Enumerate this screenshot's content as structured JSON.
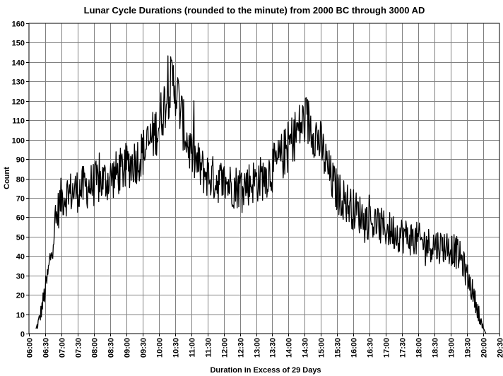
{
  "chart_data": {
    "type": "line",
    "title": "Lunar Cycle Durations (rounded to the minute) from 2000 BC through 3000 AD",
    "xlabel": "Duration in Excess of 29 Days",
    "ylabel": "Count",
    "xlim_minutes": [
      360,
      1230
    ],
    "ylim": [
      0,
      160
    ],
    "grid": true,
    "x_tick_labels": [
      "06:00",
      "06:30",
      "07:00",
      "07:30",
      "08:00",
      "08:30",
      "09:00",
      "09:30",
      "10:00",
      "10:30",
      "11:00",
      "11:30",
      "12:00",
      "12:30",
      "13:00",
      "13:30",
      "14:00",
      "14:30",
      "15:00",
      "15:30",
      "16:00",
      "16:30",
      "17:00",
      "17:30",
      "18:00",
      "18:30",
      "19:00",
      "19:30",
      "20:00",
      "20:30"
    ],
    "y_tick_labels": [
      "0",
      "10",
      "20",
      "30",
      "40",
      "50",
      "60",
      "70",
      "80",
      "90",
      "100",
      "110",
      "120",
      "130",
      "140",
      "150",
      "160"
    ],
    "series_envelope": {
      "description": "one count per minute of duration",
      "x_minutes": [
        373,
        380,
        385,
        390,
        395,
        400,
        405,
        410,
        415,
        420,
        430,
        440,
        450,
        460,
        470,
        480,
        490,
        500,
        510,
        520,
        530,
        540,
        550,
        560,
        570,
        580,
        590,
        600,
        610,
        620,
        625,
        630,
        635,
        640,
        645,
        650,
        655,
        660,
        670,
        680,
        690,
        700,
        710,
        720,
        730,
        740,
        750,
        760,
        770,
        780,
        790,
        800,
        810,
        820,
        830,
        840,
        850,
        860,
        870,
        880,
        890,
        900,
        905,
        910,
        915,
        920,
        925,
        930,
        940,
        950,
        960,
        970,
        980,
        990,
        1000,
        1010,
        1020,
        1030,
        1040,
        1050,
        1060,
        1070,
        1080,
        1090,
        1100,
        1110,
        1120,
        1130,
        1140,
        1150,
        1160,
        1170,
        1175,
        1180,
        1185,
        1190,
        1195,
        1200,
        1205
      ],
      "counts": [
        2,
        8,
        15,
        22,
        30,
        40,
        50,
        58,
        65,
        70,
        72,
        73,
        74,
        75,
        76,
        77,
        78,
        79,
        80,
        82,
        84,
        86,
        88,
        90,
        93,
        97,
        102,
        108,
        118,
        127,
        130,
        128,
        122,
        115,
        108,
        102,
        97,
        93,
        88,
        84,
        82,
        80,
        79,
        78,
        77,
        76,
        76,
        77,
        78,
        79,
        80,
        82,
        85,
        88,
        92,
        97,
        102,
        106,
        110,
        108,
        103,
        97,
        92,
        87,
        83,
        79,
        76,
        73,
        70,
        67,
        64,
        62,
        60,
        58,
        57,
        55,
        54,
        53,
        52,
        51,
        50,
        49,
        48,
        47,
        46,
        46,
        45,
        45,
        44,
        42,
        38,
        30,
        26,
        22,
        17,
        12,
        7,
        3,
        0
      ]
    }
  }
}
